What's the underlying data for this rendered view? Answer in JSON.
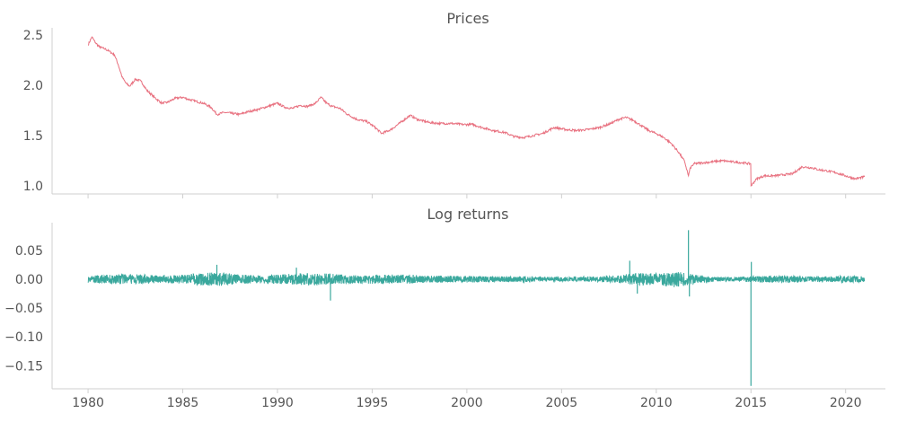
{
  "chart_data": [
    {
      "type": "line",
      "title": "Prices",
      "xlabel": "",
      "ylabel": "",
      "xlim": [
        1978.1,
        2022.1
      ],
      "ylim": [
        0.92,
        2.57
      ],
      "x_ticks": [
        1980,
        1985,
        1990,
        1995,
        2000,
        2005,
        2010,
        2015,
        2020
      ],
      "y_ticks": [
        1.0,
        1.5,
        2.0,
        2.5
      ],
      "y_tick_labels": [
        "1.0",
        "1.5",
        "2.0",
        "2.5"
      ],
      "show_x_tick_labels": false,
      "grid": false,
      "series": [
        {
          "color": "#e8707f",
          "x": [
            1980.0,
            1980.2,
            1980.4,
            1980.6,
            1980.9,
            1981.1,
            1981.4,
            1981.6,
            1981.8,
            1982.0,
            1982.2,
            1982.5,
            1982.8,
            1983.1,
            1983.5,
            1983.9,
            1984.2,
            1984.6,
            1985.0,
            1985.3,
            1985.7,
            1986.1,
            1986.5,
            1986.8,
            1987.2,
            1987.6,
            1988.0,
            1988.5,
            1989.0,
            1989.5,
            1990.0,
            1990.4,
            1990.8,
            1991.2,
            1991.6,
            1992.0,
            1992.3,
            1992.6,
            1992.9,
            1993.3,
            1993.7,
            1994.2,
            1994.7,
            1995.1,
            1995.5,
            1996.0,
            1996.5,
            1997.0,
            1997.4,
            1998.0,
            1998.6,
            1999.2,
            1999.8,
            2000.3,
            2000.8,
            2001.4,
            2002.0,
            2002.5,
            2003.0,
            2003.5,
            2004.0,
            2004.6,
            2005.2,
            2005.8,
            2006.4,
            2007.0,
            2007.6,
            2008.0,
            2008.4,
            2008.8,
            2009.2,
            2009.6,
            2010.0,
            2010.4,
            2010.8,
            2011.2,
            2011.5,
            2011.7,
            2011.8,
            2012.0,
            2012.5,
            2013.0,
            2013.5,
            2014.0,
            2014.5,
            2014.99,
            2015.0,
            2015.3,
            2015.7,
            2016.2,
            2016.7,
            2017.2,
            2017.7,
            2018.2,
            2018.6,
            2019.0,
            2019.5,
            2020.0,
            2020.5,
            2021.0
          ],
          "y": [
            2.4,
            2.48,
            2.42,
            2.38,
            2.36,
            2.34,
            2.3,
            2.2,
            2.08,
            2.02,
            1.99,
            2.06,
            2.04,
            1.95,
            1.88,
            1.82,
            1.83,
            1.87,
            1.88,
            1.86,
            1.84,
            1.82,
            1.78,
            1.71,
            1.73,
            1.72,
            1.71,
            1.74,
            1.76,
            1.79,
            1.82,
            1.78,
            1.77,
            1.8,
            1.79,
            1.82,
            1.88,
            1.82,
            1.79,
            1.77,
            1.71,
            1.66,
            1.64,
            1.59,
            1.52,
            1.56,
            1.63,
            1.7,
            1.66,
            1.63,
            1.62,
            1.62,
            1.61,
            1.61,
            1.58,
            1.55,
            1.53,
            1.49,
            1.48,
            1.5,
            1.52,
            1.58,
            1.56,
            1.55,
            1.56,
            1.58,
            1.62,
            1.66,
            1.68,
            1.65,
            1.6,
            1.55,
            1.52,
            1.48,
            1.42,
            1.33,
            1.24,
            1.1,
            1.18,
            1.22,
            1.23,
            1.24,
            1.25,
            1.24,
            1.23,
            1.22,
            1.0,
            1.07,
            1.1,
            1.1,
            1.11,
            1.12,
            1.19,
            1.18,
            1.16,
            1.15,
            1.13,
            1.1,
            1.07,
            1.09
          ]
        }
      ]
    },
    {
      "type": "line",
      "title": "Log returns",
      "xlabel": "",
      "ylabel": "",
      "xlim": [
        1978.1,
        2022.1
      ],
      "ylim": [
        -0.19,
        0.098
      ],
      "x_ticks": [
        1980,
        1985,
        1990,
        1995,
        2000,
        2005,
        2010,
        2015,
        2020
      ],
      "x_tick_labels": [
        "1980",
        "1985",
        "1990",
        "1995",
        "2000",
        "2005",
        "2010",
        "2015",
        "2020"
      ],
      "y_ticks": [
        0.05,
        0.0,
        -0.05,
        -0.1,
        -0.15
      ],
      "y_tick_labels": [
        "0.05",
        "0.00",
        "−0.05",
        "−0.10",
        "−0.15"
      ],
      "grid": false,
      "series": [
        {
          "color": "#3aa89d",
          "envelope": {
            "x": [
              1980.0,
              1981.0,
              1982.0,
              1983.0,
              1984.0,
              1985.0,
              1986.0,
              1987.0,
              1988.0,
              1989.0,
              1990.0,
              1991.0,
              1992.0,
              1993.0,
              1994.0,
              1995.0,
              1996.0,
              1997.0,
              1998.0,
              1999.0,
              2000.0,
              2001.0,
              2002.0,
              2003.0,
              2004.0,
              2005.0,
              2006.0,
              2007.0,
              2008.0,
              2009.0,
              2010.0,
              2011.0,
              2012.0,
              2013.0,
              2014.0,
              2015.0,
              2016.0,
              2017.0,
              2018.0,
              2019.0,
              2020.0,
              2021.0
            ],
            "amplitude": [
              0.006,
              0.008,
              0.009,
              0.008,
              0.007,
              0.008,
              0.011,
              0.012,
              0.008,
              0.007,
              0.008,
              0.01,
              0.011,
              0.009,
              0.007,
              0.008,
              0.008,
              0.008,
              0.006,
              0.006,
              0.006,
              0.005,
              0.005,
              0.005,
              0.004,
              0.004,
              0.004,
              0.005,
              0.007,
              0.011,
              0.01,
              0.014,
              0.008,
              0.005,
              0.004,
              0.005,
              0.006,
              0.006,
              0.005,
              0.005,
              0.006,
              0.005
            ]
          },
          "spikes": [
            {
              "x": 1986.8,
              "y": 0.025
            },
            {
              "x": 1991.0,
              "y": 0.02
            },
            {
              "x": 1992.8,
              "y": -0.037
            },
            {
              "x": 2008.6,
              "y": 0.032
            },
            {
              "x": 2009.0,
              "y": -0.025
            },
            {
              "x": 2011.7,
              "y": 0.085
            },
            {
              "x": 2011.75,
              "y": -0.03
            },
            {
              "x": 2015.0,
              "y": -0.185
            },
            {
              "x": 2015.02,
              "y": 0.03
            }
          ]
        }
      ]
    }
  ]
}
